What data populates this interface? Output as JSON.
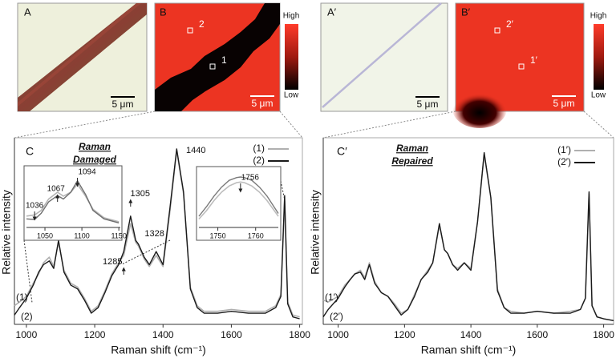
{
  "panels": [
    {
      "label": "A",
      "scale_bar": "5 μm"
    },
    {
      "label": "B",
      "scale_bar": "5 μm",
      "colorbar": {
        "high": "High",
        "low": "Low"
      },
      "points": [
        "1",
        "2"
      ]
    },
    {
      "label": "A′",
      "scale_bar": "5 μm"
    },
    {
      "label": "B′",
      "scale_bar": "5 μm",
      "colorbar": {
        "high": "High",
        "low": "Low"
      },
      "points": [
        "1′",
        "2′"
      ]
    }
  ],
  "chart_data": [
    {
      "type": "line",
      "panel_label": "C",
      "annotation": [
        "Raman",
        "Damaged"
      ],
      "x_label": "Raman shift (cm⁻¹)",
      "y_label": "Relative intensity",
      "xlim": [
        965,
        1808
      ],
      "xticks": [
        1000,
        1200,
        1400,
        1600,
        1800
      ],
      "ylim": [
        0,
        1
      ],
      "x": [
        965,
        980,
        1000,
        1020,
        1036,
        1050,
        1067,
        1080,
        1094,
        1110,
        1130,
        1150,
        1170,
        1190,
        1210,
        1230,
        1250,
        1270,
        1285,
        1305,
        1320,
        1328,
        1345,
        1360,
        1380,
        1400,
        1420,
        1440,
        1460,
        1480,
        1500,
        1520,
        1560,
        1600,
        1650,
        1700,
        1730,
        1745,
        1756,
        1765,
        1780,
        1800
      ],
      "series": [
        {
          "name": "(1)",
          "color": "#b0b0b0",
          "values": [
            0.1,
            0.12,
            0.15,
            0.22,
            0.27,
            0.33,
            0.36,
            0.31,
            0.44,
            0.29,
            0.22,
            0.2,
            0.14,
            0.07,
            0.1,
            0.18,
            0.27,
            0.33,
            0.37,
            0.54,
            0.44,
            0.42,
            0.35,
            0.31,
            0.37,
            0.31,
            0.6,
            0.93,
            0.7,
            0.2,
            0.1,
            0.07,
            0.07,
            0.08,
            0.07,
            0.07,
            0.1,
            0.16,
            0.66,
            0.12,
            0.05,
            0.04
          ]
        },
        {
          "name": "(2)",
          "color": "#1a1a1a",
          "values": [
            0.05,
            0.09,
            0.14,
            0.21,
            0.28,
            0.32,
            0.34,
            0.3,
            0.45,
            0.28,
            0.21,
            0.19,
            0.13,
            0.06,
            0.09,
            0.17,
            0.26,
            0.32,
            0.39,
            0.58,
            0.45,
            0.43,
            0.36,
            0.32,
            0.39,
            0.32,
            0.62,
            0.94,
            0.71,
            0.19,
            0.09,
            0.06,
            0.06,
            0.07,
            0.06,
            0.06,
            0.09,
            0.15,
            0.69,
            0.11,
            0.04,
            0.03
          ]
        }
      ],
      "peak_labels": [
        1440,
        1305,
        1328,
        1285
      ]
    },
    {
      "type": "line",
      "panel_label": "C′",
      "annotation": [
        "Raman",
        "Repaired"
      ],
      "x_label": "Raman shift (cm⁻¹)",
      "y_label": "Relative intensity",
      "xlim": [
        955,
        1830
      ],
      "xticks": [
        1000,
        1200,
        1400,
        1600,
        1800
      ],
      "ylim": [
        0,
        1
      ],
      "x": [
        955,
        970,
        1000,
        1020,
        1036,
        1050,
        1067,
        1080,
        1094,
        1110,
        1130,
        1150,
        1170,
        1190,
        1210,
        1230,
        1250,
        1270,
        1285,
        1305,
        1320,
        1330,
        1345,
        1360,
        1380,
        1400,
        1420,
        1440,
        1460,
        1480,
        1500,
        1520,
        1560,
        1600,
        1650,
        1700,
        1730,
        1745,
        1756,
        1765,
        1780,
        1800,
        1830
      ],
      "series": [
        {
          "name": "(1′)",
          "color": "#b0b0b0",
          "values": [
            0.13,
            0.12,
            0.15,
            0.21,
            0.24,
            0.27,
            0.29,
            0.25,
            0.33,
            0.23,
            0.17,
            0.15,
            0.11,
            0.06,
            0.08,
            0.16,
            0.24,
            0.29,
            0.33,
            0.53,
            0.4,
            0.38,
            0.32,
            0.3,
            0.33,
            0.3,
            0.55,
            0.91,
            0.68,
            0.19,
            0.09,
            0.07,
            0.06,
            0.07,
            0.06,
            0.07,
            0.08,
            0.14,
            0.7,
            0.1,
            0.04,
            0.03,
            0.02
          ]
        },
        {
          "name": "(2′)",
          "color": "#1a1a1a",
          "values": [
            0.04,
            0.08,
            0.14,
            0.2,
            0.24,
            0.27,
            0.28,
            0.24,
            0.32,
            0.22,
            0.17,
            0.15,
            0.1,
            0.05,
            0.08,
            0.15,
            0.24,
            0.28,
            0.33,
            0.54,
            0.4,
            0.38,
            0.32,
            0.29,
            0.33,
            0.29,
            0.55,
            0.92,
            0.68,
            0.18,
            0.09,
            0.06,
            0.06,
            0.07,
            0.06,
            0.06,
            0.08,
            0.14,
            0.71,
            0.1,
            0.04,
            0.03,
            0.02
          ]
        }
      ]
    },
    {
      "type": "line",
      "xlim": [
        1025,
        1152
      ],
      "xticks": [
        1050,
        1100,
        1150
      ],
      "ylim": [
        0,
        1
      ],
      "x": [
        1025,
        1036,
        1045,
        1055,
        1067,
        1075,
        1085,
        1094,
        1105,
        1115,
        1130,
        1150
      ],
      "series": [
        {
          "color": "#b5b5b5",
          "values": [
            0.2,
            0.22,
            0.3,
            0.5,
            0.62,
            0.55,
            0.62,
            0.76,
            0.55,
            0.32,
            0.17,
            0.1
          ]
        },
        {
          "color": "#6e6e6e",
          "values": [
            0.15,
            0.14,
            0.25,
            0.45,
            0.56,
            0.5,
            0.62,
            0.82,
            0.58,
            0.3,
            0.15,
            0.08
          ]
        }
      ],
      "peak_labels": [
        1036,
        1067,
        1094
      ]
    },
    {
      "type": "line",
      "xlim": [
        1745,
        1766
      ],
      "xticks": [
        1750,
        1760
      ],
      "ylim": [
        0,
        1
      ],
      "x": [
        1745,
        1747,
        1749,
        1751,
        1753,
        1755,
        1756,
        1757,
        1759,
        1761,
        1763,
        1766
      ],
      "series": [
        {
          "color": "#bdbdbd",
          "values": [
            0.15,
            0.3,
            0.48,
            0.63,
            0.74,
            0.8,
            0.81,
            0.8,
            0.74,
            0.63,
            0.48,
            0.2
          ]
        },
        {
          "color": "#7a7a7a",
          "values": [
            0.2,
            0.37,
            0.56,
            0.72,
            0.84,
            0.89,
            0.9,
            0.89,
            0.84,
            0.72,
            0.56,
            0.25
          ]
        }
      ],
      "peak_labels": [
        1756
      ]
    }
  ]
}
